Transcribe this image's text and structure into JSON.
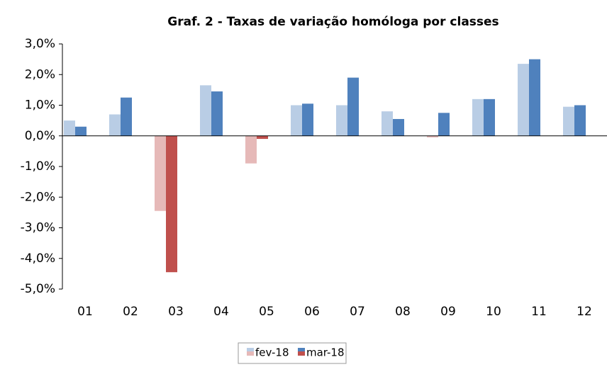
{
  "chart_data": {
    "type": "bar",
    "title": "Graf. 2 - Taxas de variação homóloga por classes",
    "categories": [
      "01",
      "02",
      "03",
      "04",
      "05",
      "06",
      "07",
      "08",
      "09",
      "10",
      "11",
      "12"
    ],
    "series": [
      {
        "name": "fev-18",
        "color": "#b9cde5",
        "negative_color": "#e6b9b8",
        "values": [
          0.5,
          0.7,
          -2.45,
          1.65,
          -0.9,
          1.0,
          1.0,
          0.8,
          -0.05,
          1.2,
          2.35,
          0.95
        ]
      },
      {
        "name": "mar-18",
        "color": "#4f81bd",
        "negative_color": "#c0504d",
        "values": [
          0.3,
          1.25,
          -4.45,
          1.45,
          -0.1,
          1.05,
          1.9,
          0.55,
          0.75,
          1.2,
          2.5,
          1.0
        ]
      }
    ],
    "ylim": [
      -5,
      3
    ],
    "yticks": [
      {
        "value": -5,
        "label": "-5,0%"
      },
      {
        "value": -4,
        "label": "-4,0%"
      },
      {
        "value": -3,
        "label": "-3,0%"
      },
      {
        "value": -2,
        "label": "-2,0%"
      },
      {
        "value": -1,
        "label": "-1,0%"
      },
      {
        "value": 0,
        "label": "0,0%"
      },
      {
        "value": 1,
        "label": "1,0%"
      },
      {
        "value": 2,
        "label": "2,0%"
      },
      {
        "value": 3,
        "label": "3,0%"
      }
    ],
    "grid": false
  }
}
